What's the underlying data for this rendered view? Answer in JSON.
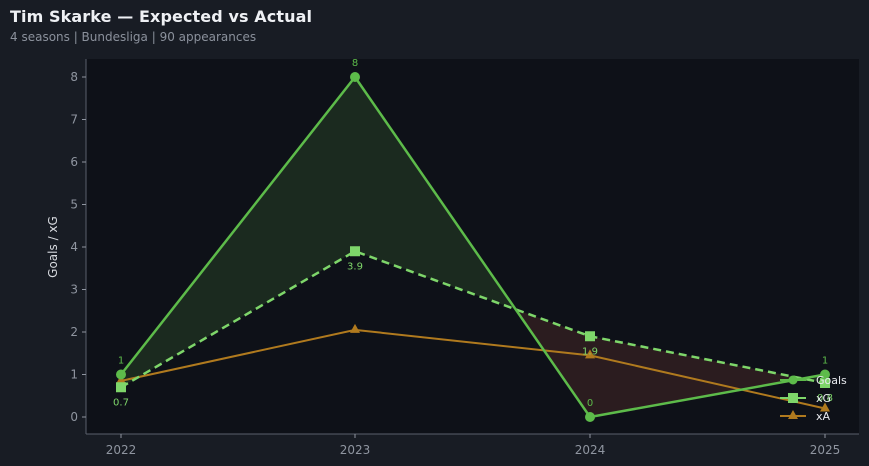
{
  "header": {
    "title": "Tim Skarke — Expected vs Actual",
    "subtitle": "4 seasons | Bundesliga | 90 appearances"
  },
  "colors": {
    "goals": "#5dbb4a",
    "xg": "#7ed66a",
    "xa": "#b07a1e",
    "over_fill": "#1b2a1f",
    "under_fill": "#2b1c1f",
    "plot_bg": "#0e1118",
    "page_bg": "#181c24"
  },
  "chart_data": {
    "type": "line",
    "title": "Tim Skarke — Expected vs Actual",
    "subtitle": "4 seasons | Bundesliga | 90 appearances",
    "xlabel": "",
    "ylabel": "Goals / xG",
    "categories": [
      "2022",
      "2023",
      "2024",
      "2025"
    ],
    "series": [
      {
        "name": "Goals",
        "values": [
          1,
          8,
          0,
          1
        ],
        "marker": "circle",
        "style": "solid",
        "labels": [
          "1",
          "8",
          "0",
          "1"
        ]
      },
      {
        "name": "xG",
        "values": [
          0.7,
          3.9,
          1.9,
          0.8
        ],
        "marker": "square",
        "style": "dashed",
        "labels": [
          "0.7",
          "3.9",
          "1.9",
          "0.8"
        ]
      },
      {
        "name": "xA",
        "values": [
          0.85,
          2.05,
          1.45,
          0.2
        ],
        "marker": "triangle",
        "style": "solid"
      }
    ],
    "ylim": [
      -0.4,
      8.4
    ],
    "yticks": [
      0,
      1,
      2,
      3,
      4,
      5,
      6,
      7,
      8
    ],
    "grid": false,
    "legend_position": "lower right",
    "fill_between": "Goals vs xG (green where Goals > xG, red where Goals < xG)"
  }
}
